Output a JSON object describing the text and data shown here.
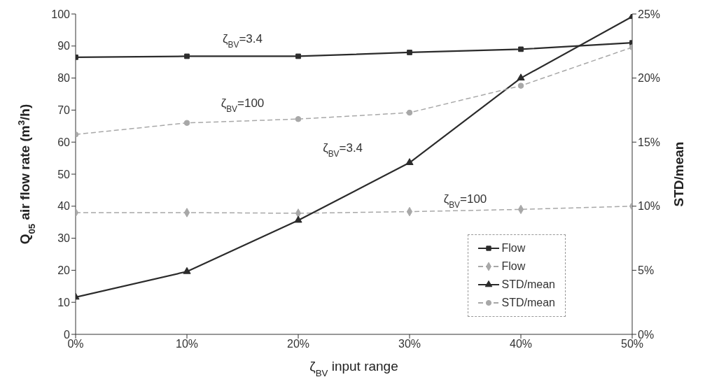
{
  "chart_data": {
    "type": "line",
    "xlabel": "ζ$_{BV}$ input range",
    "ylabel": "Q$_{05}$ air flow rate (m$^{3}$/h)",
    "y2label": "STD/mean",
    "x": [
      0,
      10,
      20,
      30,
      40,
      50
    ],
    "xlim": [
      0,
      50
    ],
    "xticks": [
      {
        "value": 0,
        "label": "0%"
      },
      {
        "value": 10,
        "label": "10%"
      },
      {
        "value": 20,
        "label": "20%"
      },
      {
        "value": 30,
        "label": "30%"
      },
      {
        "value": 40,
        "label": "40%"
      },
      {
        "value": 50,
        "label": "50%"
      }
    ],
    "ylim": [
      0,
      100
    ],
    "yticks": [
      0,
      10,
      20,
      30,
      40,
      50,
      60,
      70,
      80,
      90,
      100
    ],
    "y2lim": [
      0,
      25
    ],
    "y2ticks": [
      {
        "value": 0,
        "label": "0%"
      },
      {
        "value": 5,
        "label": "5%"
      },
      {
        "value": 10,
        "label": "10%"
      },
      {
        "value": 15,
        "label": "15%"
      },
      {
        "value": 20,
        "label": "20%"
      },
      {
        "value": 25,
        "label": "25%"
      }
    ],
    "series": [
      {
        "name": "Flow",
        "color": "#2b2b2b",
        "marker": "square",
        "line_style": "solid",
        "values": [
          86.5,
          86.8,
          86.8,
          88,
          89,
          91
        ]
      },
      {
        "name": "Flow",
        "color": "#a8a8a8",
        "marker": "diamond",
        "line_style": "dashed",
        "values": [
          38,
          38,
          37.8,
          38.3,
          39,
          40
        ]
      },
      {
        "name": "STD/mean",
        "color": "#2b2b2b",
        "marker": "triangle",
        "line_style": "solid",
        "axis": "y2",
        "values": [
          2.9,
          4.9,
          8.9,
          13.4,
          20,
          24.8
        ]
      },
      {
        "name": "STD/mean",
        "color": "#a8a8a8",
        "marker": "circle",
        "line_style": "dashed",
        "axis": "y2",
        "values": [
          15.6,
          16.5,
          16.8,
          17.3,
          19.4,
          22.4
        ]
      }
    ],
    "annotations": [
      "ζ$_{BV}$=3.4",
      "ζ$_{BV}$=100",
      "ζ$_{BV}$=3.4",
      "ζ$_{BV}$=100"
    ],
    "legend": "bottom right"
  }
}
